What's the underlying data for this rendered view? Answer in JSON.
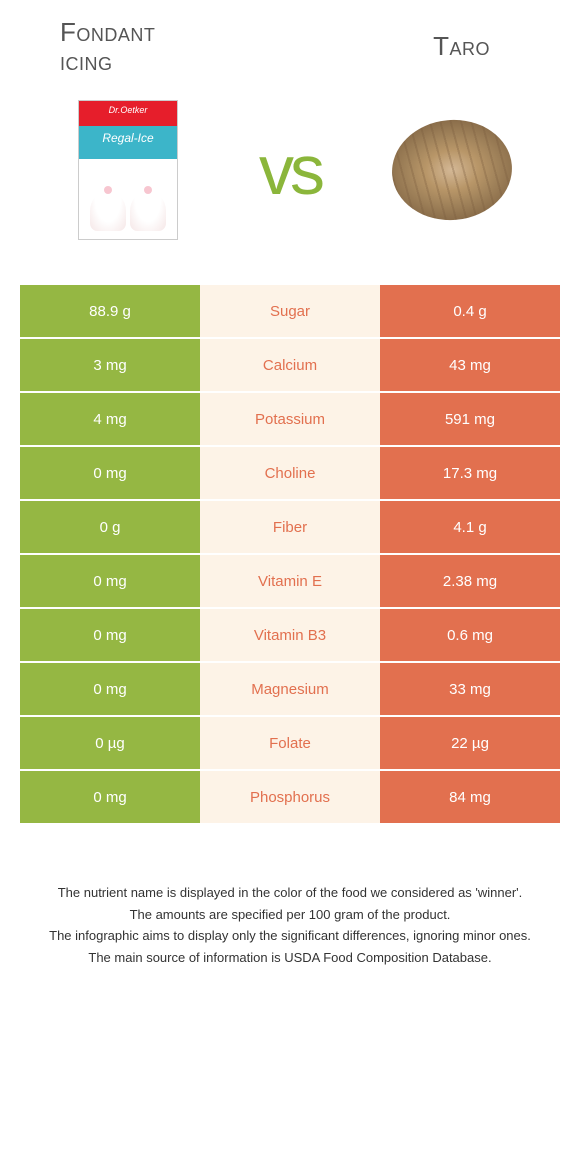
{
  "colors": {
    "left": "#95b743",
    "right": "#e2704f",
    "mid_bg": "#fdf3e7",
    "title": "#555555",
    "vs": "#8bb63b"
  },
  "left": {
    "title_line1": "Fondant",
    "title_line2": "icing"
  },
  "right": {
    "title": "Taro"
  },
  "vs_label": "vs",
  "rows": [
    {
      "left": "88.9 g",
      "name": "Sugar",
      "right": "0.4 g",
      "winner": "right"
    },
    {
      "left": "3 mg",
      "name": "Calcium",
      "right": "43 mg",
      "winner": "right"
    },
    {
      "left": "4 mg",
      "name": "Potassium",
      "right": "591 mg",
      "winner": "right"
    },
    {
      "left": "0 mg",
      "name": "Choline",
      "right": "17.3 mg",
      "winner": "right"
    },
    {
      "left": "0 g",
      "name": "Fiber",
      "right": "4.1 g",
      "winner": "right"
    },
    {
      "left": "0 mg",
      "name": "Vitamin E",
      "right": "2.38 mg",
      "winner": "right"
    },
    {
      "left": "0 mg",
      "name": "Vitamin B3",
      "right": "0.6 mg",
      "winner": "right"
    },
    {
      "left": "0 mg",
      "name": "Magnesium",
      "right": "33 mg",
      "winner": "right"
    },
    {
      "left": "0 µg",
      "name": "Folate",
      "right": "22 µg",
      "winner": "right"
    },
    {
      "left": "0 mg",
      "name": "Phosphorus",
      "right": "84 mg",
      "winner": "right"
    }
  ],
  "footer": {
    "line1": "The nutrient name is displayed in the color of the food we considered as 'winner'.",
    "line2": "The amounts are specified per 100 gram of the product.",
    "line3": "The infographic aims to display only the significant differences, ignoring minor ones.",
    "line4": "The main source of information is USDA Food Composition Database."
  }
}
